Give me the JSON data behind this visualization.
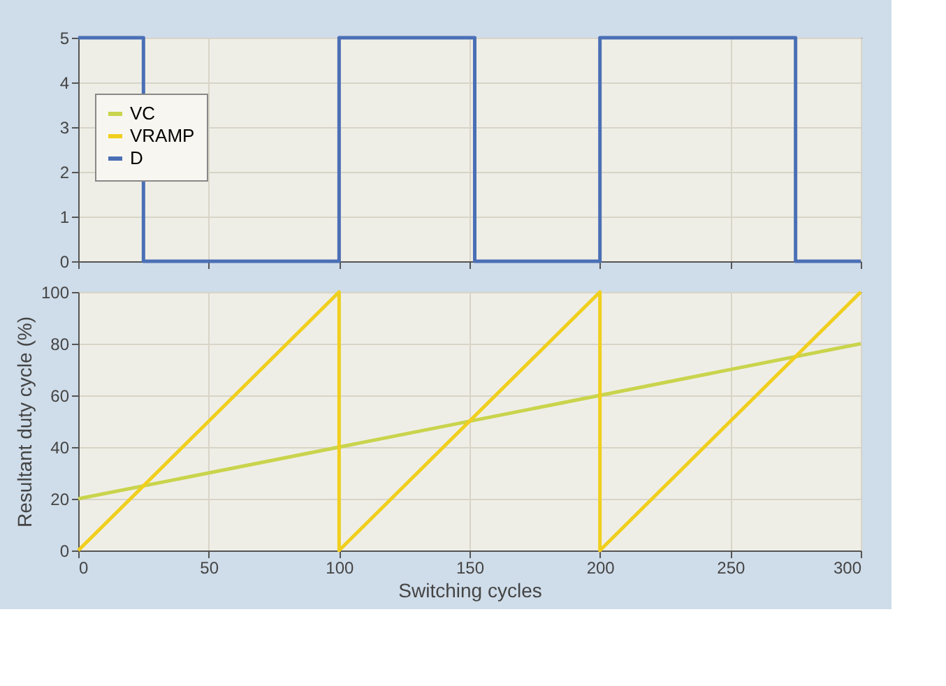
{
  "chart_data": [
    {
      "type": "line",
      "xlim": [
        0,
        300
      ],
      "xticks": [
        0,
        50,
        100,
        150,
        200,
        250,
        300
      ],
      "ylim": [
        0,
        5
      ],
      "yticks": [
        0,
        1,
        2,
        3,
        4,
        5
      ],
      "tick_labels": "y",
      "grid": true,
      "legend": "left",
      "marker": "none",
      "line_style": "solid",
      "series": [
        {
          "name": "D",
          "color": "#4a6fb5",
          "x": [
            0,
            25,
            25,
            100,
            100,
            152,
            152,
            200,
            200,
            275,
            275,
            300
          ],
          "values": [
            5,
            5,
            0,
            0,
            5,
            5,
            0,
            0,
            5,
            5,
            0,
            0
          ]
        }
      ]
    },
    {
      "type": "line",
      "xlabel": "Switching cycles",
      "ylabel": "Resultant duty cycle (%)",
      "xlim": [
        0,
        300
      ],
      "xticks": [
        0,
        50,
        100,
        150,
        200,
        250,
        300
      ],
      "ylim": [
        0,
        100
      ],
      "yticks": [
        0,
        20,
        40,
        60,
        80,
        100
      ],
      "grid": true,
      "legend": "left",
      "marker": "none",
      "line_style": "solid",
      "series": [
        {
          "name": "VC",
          "color": "#c9d44c",
          "x": [
            0,
            300
          ],
          "values": [
            20,
            80
          ]
        },
        {
          "name": "VRAMP",
          "color": "#f0cf1e",
          "x": [
            0,
            100,
            100,
            200,
            200,
            300
          ],
          "values": [
            0,
            100,
            0,
            100,
            0,
            100
          ]
        }
      ]
    }
  ]
}
